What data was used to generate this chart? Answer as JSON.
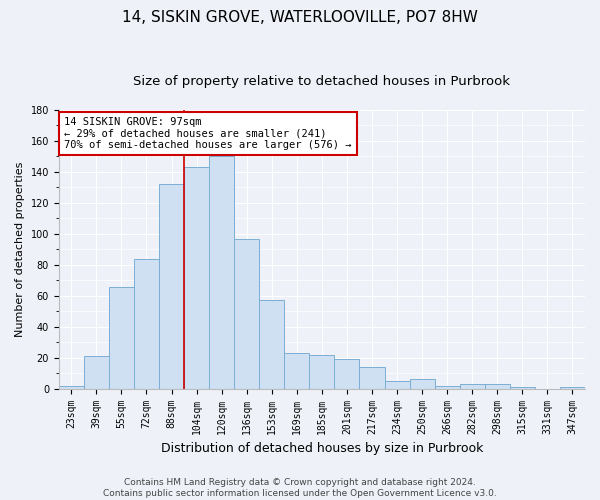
{
  "title1": "14, SISKIN GROVE, WATERLOOVILLE, PO7 8HW",
  "title2": "Size of property relative to detached houses in Purbrook",
  "xlabel": "Distribution of detached houses by size in Purbrook",
  "ylabel": "Number of detached properties",
  "categories": [
    "23sqm",
    "39sqm",
    "55sqm",
    "72sqm",
    "88sqm",
    "104sqm",
    "120sqm",
    "136sqm",
    "153sqm",
    "169sqm",
    "185sqm",
    "201sqm",
    "217sqm",
    "234sqm",
    "250sqm",
    "266sqm",
    "282sqm",
    "298sqm",
    "315sqm",
    "331sqm",
    "347sqm"
  ],
  "values": [
    2,
    21,
    66,
    84,
    132,
    143,
    150,
    97,
    57,
    23,
    22,
    19,
    14,
    5,
    6,
    2,
    3,
    3,
    1,
    0,
    1
  ],
  "bar_color": "#cfe0f2",
  "bar_edge_color": "#7aafd4",
  "annotation_text1": "14 SISKIN GROVE: 97sqm",
  "annotation_text2": "← 29% of detached houses are smaller (241)",
  "annotation_text3": "70% of semi-detached houses are larger (576) →",
  "annotation_box_color": "#ffffff",
  "annotation_box_edge": "#cc0000",
  "vline_color": "#cc0000",
  "vline_x_index": 4.5,
  "ylim": [
    0,
    180
  ],
  "footer1": "Contains HM Land Registry data © Crown copyright and database right 2024.",
  "footer2": "Contains public sector information licensed under the Open Government Licence v3.0.",
  "bg_color": "#eef2f8",
  "grid_color": "#ffffff",
  "title1_fontsize": 11,
  "title2_fontsize": 9.5,
  "xlabel_fontsize": 9,
  "ylabel_fontsize": 8,
  "tick_fontsize": 7,
  "footer_fontsize": 6.5,
  "ann_fontsize": 7.5
}
